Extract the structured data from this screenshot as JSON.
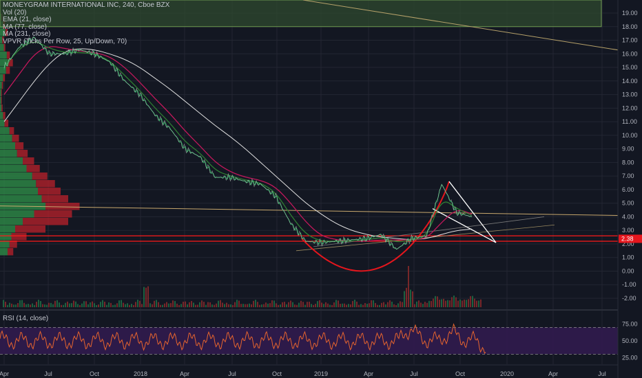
{
  "legend": {
    "symbol": "MONEYGRAM INTERNATIONAL INC, 240, Cboe BZX",
    "vol": "Vol (20)",
    "ema": "EMA (21, close)",
    "ma1": "MA (77, close)",
    "ma2": "MA (231, close)",
    "vpvr": "VPVR (Ticks Per Row, 25, Up/Down, 70)"
  },
  "rsi_title": "RSI (14, close)",
  "current_price": "2.38",
  "colors": {
    "background": "#131722",
    "grid": "#232632",
    "price": "#26a65b",
    "ema": "#2e7d32",
    "ma77": "#c2185b",
    "ma231": "#e0e0e0",
    "cup": "#e5161d",
    "horizontal_lines": "#ff1a1a",
    "wedge": "#ffffff",
    "trendline": "#c9a96e",
    "rsi": "#e8652e",
    "rsi_band": "#311b4e",
    "vp_up": "#2e8b47",
    "vp_down": "#b0202a",
    "resistance_box": "#2f4a2f"
  },
  "chart_data": [
    {
      "type": "line",
      "title": "MONEYGRAM INTERNATIONAL INC, 240, Cboe BZX",
      "x_ticks": [
        "Apr",
        "Jul",
        "Oct",
        "2018",
        "Apr",
        "Jul",
        "Oct",
        "2019",
        "Apr",
        "Jul",
        "Oct",
        "2020",
        "Apr",
        "Jul"
      ],
      "y_ticks": [
        "19.00",
        "18.00",
        "17.00",
        "16.00",
        "15.00",
        "14.00",
        "13.00",
        "12.00",
        "11.00",
        "10.00",
        "9.00",
        "8.00",
        "7.00",
        "6.00",
        "5.00",
        "4.00",
        "3.00",
        "2.00",
        "1.00",
        "0.00",
        "-1.00",
        "-2.00"
      ],
      "ylim": [
        -2.5,
        19.5
      ],
      "series": [
        {
          "name": "close",
          "x": [
            "2017-04",
            "2017-05",
            "2017-06",
            "2017-07",
            "2017-08",
            "2017-09",
            "2017-10",
            "2017-11",
            "2017-12",
            "2018-01",
            "2018-02",
            "2018-03",
            "2018-04",
            "2018-05",
            "2018-06",
            "2018-07",
            "2018-08",
            "2018-09",
            "2018-10",
            "2018-11",
            "2018-12",
            "2019-01",
            "2019-02",
            "2019-03",
            "2019-04",
            "2019-05",
            "2019-06",
            "2019-07",
            "2019-08",
            "2019-09",
            "2019-10",
            "2019-11"
          ],
          "values": [
            15.0,
            16.5,
            17.2,
            16.0,
            16.0,
            16.3,
            16.0,
            15.4,
            14.0,
            13.0,
            11.5,
            10.5,
            9.0,
            8.4,
            6.9,
            6.9,
            6.6,
            6.4,
            5.5,
            3.5,
            2.2,
            2.1,
            2.2,
            2.3,
            2.4,
            2.7,
            1.6,
            2.4,
            2.6,
            6.4,
            4.3,
            4.0
          ]
        },
        {
          "name": "EMA (21, close)",
          "values": [
            15.0,
            16.4,
            17.0,
            16.4,
            16.1,
            16.1,
            16.0,
            15.5,
            14.4,
            13.3,
            12.0,
            10.9,
            9.5,
            8.7,
            7.4,
            7.0,
            6.7,
            6.5,
            5.8,
            4.1,
            2.7,
            2.2,
            2.2,
            2.2,
            2.3,
            2.5,
            2.1,
            2.3,
            2.5,
            5.4,
            4.6,
            4.1
          ]
        },
        {
          "name": "MA (77, close)",
          "values": [
            13.0,
            14.5,
            16.0,
            16.6,
            16.4,
            16.2,
            16.1,
            15.8,
            15.0,
            13.9,
            12.7,
            11.6,
            10.3,
            9.2,
            8.0,
            7.3,
            6.9,
            6.7,
            6.2,
            5.0,
            3.6,
            2.6,
            2.3,
            2.2,
            2.2,
            2.3,
            2.3,
            2.3,
            2.4,
            3.6,
            4.6,
            4.2
          ]
        },
        {
          "name": "MA (231, close)",
          "values": [
            11.0,
            12.5,
            14.0,
            15.3,
            16.2,
            16.4,
            16.3,
            16.0,
            15.6,
            15.0,
            14.2,
            13.4,
            12.5,
            11.6,
            10.7,
            9.9,
            9.0,
            8.0,
            7.0,
            6.0,
            5.0,
            4.2,
            3.5,
            3.0,
            2.7,
            2.5,
            2.4,
            2.3,
            2.4,
            2.7,
            3.0,
            3.1
          ]
        }
      ],
      "cup_low": -0.3,
      "horizontal_levels": [
        2.2,
        2.6
      ],
      "resistance_zone": [
        18.0,
        20.0
      ],
      "wedge_top": 6.6,
      "wedge_apex": 2.1
    },
    {
      "type": "line",
      "title": "RSI (14, close)",
      "y_ticks": [
        "75.00",
        "50.00",
        "25.00"
      ],
      "ylim": [
        15,
        95
      ],
      "bands": [
        30,
        70
      ]
    }
  ]
}
